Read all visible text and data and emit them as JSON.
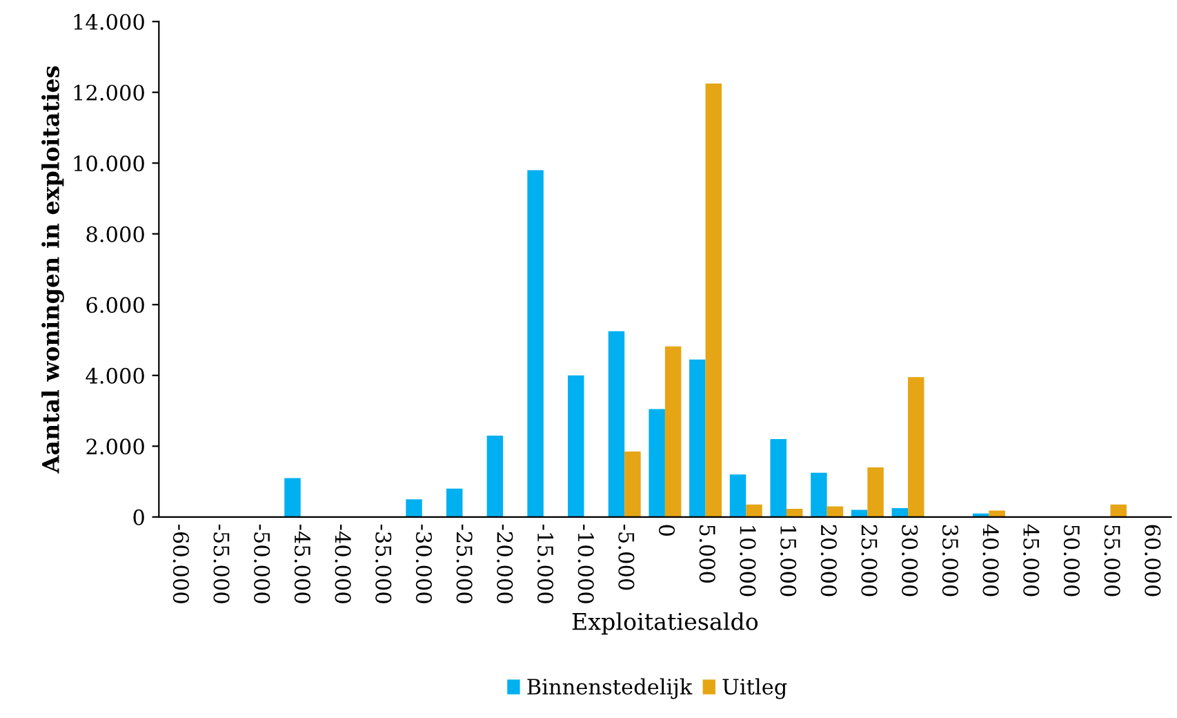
{
  "chart_data": {
    "type": "bar",
    "xlabel": "Exploitatiesaldo",
    "ylabel": "Aantal woningen in exploitaties",
    "categories": [
      "-60.000",
      "-55.000",
      "-50.000",
      "-45.000",
      "-40.000",
      "-35.000",
      "-30.000",
      "-25.000",
      "-20.000",
      "-15.000",
      "-10.000",
      "-5.000",
      "0",
      "5.000",
      "10.000",
      "15.000",
      "20.000",
      "25.000",
      "30.000",
      "35.000",
      "40.000",
      "45.000",
      "50.000",
      "55.000",
      "60.000"
    ],
    "series": [
      {
        "name": "Binnenstedelijk",
        "color": "#00b0f0",
        "values": [
          0,
          0,
          0,
          1100,
          null,
          null,
          500,
          800,
          2300,
          9800,
          4000,
          5250,
          3050,
          4450,
          1200,
          2200,
          1250,
          200,
          250,
          0,
          100,
          0,
          0,
          0,
          0
        ]
      },
      {
        "name": "Uitleg",
        "color": "#e6a514",
        "values": [
          0,
          0,
          0,
          0,
          0,
          0,
          0,
          0,
          0,
          0,
          0,
          1850,
          4820,
          12250,
          350,
          230,
          300,
          1400,
          3950,
          null,
          180,
          null,
          0,
          350,
          0
        ]
      }
    ],
    "ylim": [
      0,
      14000
    ],
    "yticks": [
      {
        "value": 0,
        "label": "0"
      },
      {
        "value": 2000,
        "label": "2.000"
      },
      {
        "value": 4000,
        "label": "4.000"
      },
      {
        "value": 6000,
        "label": "6.000"
      },
      {
        "value": 8000,
        "label": "8.000"
      },
      {
        "value": 10000,
        "label": "10.000"
      },
      {
        "value": 12000,
        "label": "12.000"
      },
      {
        "value": 14000,
        "label": "14.000"
      }
    ],
    "grid": false,
    "legend": "bottom"
  }
}
